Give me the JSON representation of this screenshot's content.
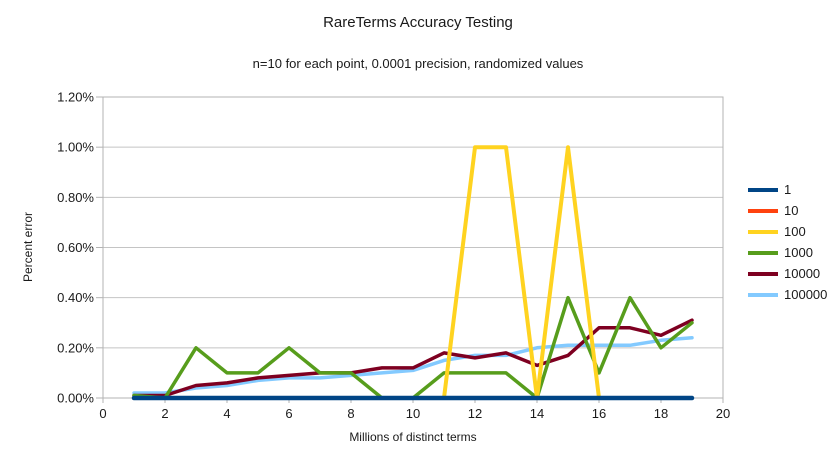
{
  "chart_data": {
    "type": "line",
    "title": "RareTerms Accuracy Testing",
    "subtitle": "n=10 for each point, 0.0001 precision, randomized values",
    "xlabel": "Millions of distinct terms",
    "ylabel": "Percent error",
    "xlim": [
      0,
      20
    ],
    "ylim_percent": [
      0,
      1.2
    ],
    "grid": "horizontal",
    "legend_position": "right",
    "x_ticks": [
      {
        "value": 0,
        "label": "0"
      },
      {
        "value": 2,
        "label": "2"
      },
      {
        "value": 4,
        "label": "4"
      },
      {
        "value": 6,
        "label": "6"
      },
      {
        "value": 8,
        "label": "8"
      },
      {
        "value": 10,
        "label": "10"
      },
      {
        "value": 12,
        "label": "12"
      },
      {
        "value": 14,
        "label": "14"
      },
      {
        "value": 16,
        "label": "16"
      },
      {
        "value": 18,
        "label": "18"
      },
      {
        "value": 20,
        "label": "20"
      }
    ],
    "y_ticks": [
      {
        "value": 0.0,
        "label": "0.00%"
      },
      {
        "value": 0.2,
        "label": "0.20%"
      },
      {
        "value": 0.4,
        "label": "0.40%"
      },
      {
        "value": 0.6,
        "label": "0.60%"
      },
      {
        "value": 0.8,
        "label": "0.80%"
      },
      {
        "value": 1.0,
        "label": "1.00%"
      },
      {
        "value": 1.2,
        "label": "1.20%"
      }
    ],
    "x": [
      1,
      2,
      3,
      4,
      5,
      6,
      7,
      8,
      9,
      10,
      11,
      12,
      13,
      14,
      15,
      16,
      17,
      18,
      19
    ],
    "series": [
      {
        "name": "1",
        "color": "#004586",
        "line_width": 4.5,
        "values": [
          0,
          0,
          0,
          0,
          0,
          0,
          0,
          0,
          0,
          0,
          0,
          0,
          0,
          0,
          0,
          0,
          0,
          0,
          0
        ]
      },
      {
        "name": "10",
        "color": "#ff420e",
        "line_width": 3.5,
        "values": [
          0,
          0,
          0,
          0,
          0,
          0,
          0,
          0,
          0,
          0,
          0,
          0,
          0,
          0,
          0,
          0,
          0,
          0,
          0
        ]
      },
      {
        "name": "100",
        "color": "#ffd320",
        "line_width": 4,
        "values": [
          0,
          0,
          0,
          0,
          0,
          0,
          0,
          0,
          0,
          0,
          0,
          1.0,
          1.0,
          0,
          1.0,
          0,
          0,
          0,
          0
        ]
      },
      {
        "name": "1000",
        "color": "#579d1c",
        "line_width": 3.5,
        "values": [
          0.01,
          0,
          0.2,
          0.1,
          0.1,
          0.2,
          0.1,
          0.1,
          0,
          0,
          0.1,
          0.1,
          0.1,
          0,
          0.4,
          0.1,
          0.4,
          0.2,
          0.3
        ]
      },
      {
        "name": "10000",
        "color": "#7e0021",
        "line_width": 3.5,
        "values": [
          0.01,
          0.01,
          0.05,
          0.06,
          0.08,
          0.09,
          0.1,
          0.1,
          0.12,
          0.12,
          0.18,
          0.16,
          0.18,
          0.13,
          0.17,
          0.28,
          0.28,
          0.25,
          0.31
        ]
      },
      {
        "name": "100000",
        "color": "#83caff",
        "line_width": 3.5,
        "values": [
          0.02,
          0.02,
          0.04,
          0.05,
          0.07,
          0.08,
          0.08,
          0.09,
          0.1,
          0.11,
          0.15,
          0.17,
          0.17,
          0.2,
          0.21,
          0.21,
          0.21,
          0.23,
          0.24
        ]
      }
    ],
    "draw_order": [
      "10",
      "100000",
      "10000",
      "1000",
      "100",
      "1"
    ],
    "colors": {
      "plot_frame": "#b3b3b3",
      "gridline": "#c4c4c4",
      "tick": "#b3b3b3",
      "text": "#1a1a1a",
      "background": "#ffffff"
    }
  }
}
